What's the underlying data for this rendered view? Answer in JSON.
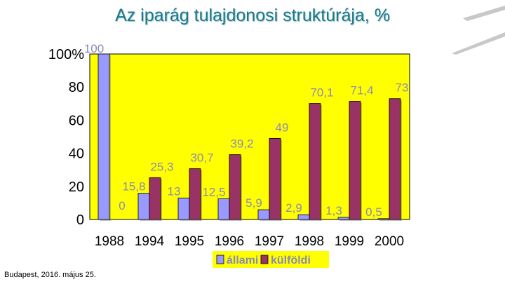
{
  "title": "Az iparág tulajdonosi struktúrája, %",
  "footer": "Budapest, 2016. május 25.",
  "colors": {
    "plot_bg": "#ffff00",
    "allami": "#9999ff",
    "kulfoldi": "#993366",
    "label_text": "#8a8ab8",
    "title": "#1a7a8c"
  },
  "chart_data": {
    "type": "bar",
    "categories": [
      "1988",
      "1994",
      "1995",
      "1996",
      "1997",
      "1998",
      "1999",
      "2000"
    ],
    "series": [
      {
        "name": "állami",
        "values": [
          100,
          15.8,
          13,
          12.5,
          5.9,
          2.9,
          1.3,
          0.5
        ]
      },
      {
        "name": "külföldi",
        "values": [
          0,
          25.3,
          30.7,
          39.2,
          49,
          70.1,
          71.4,
          73
        ]
      }
    ],
    "data_labels": {
      "állami": [
        "100",
        "15,8",
        "13",
        "12,5",
        "5,9",
        "2,9",
        "1,3",
        "0,5"
      ],
      "külföldi": [
        "0",
        "25,3",
        "30,7",
        "39,2",
        "49",
        "70,1",
        "71,4",
        "73"
      ]
    },
    "yticks": [
      "0",
      "20",
      "40",
      "60",
      "80",
      "100%"
    ],
    "ylim": [
      0,
      100
    ],
    "legend_position": "bottom",
    "grid": false
  }
}
